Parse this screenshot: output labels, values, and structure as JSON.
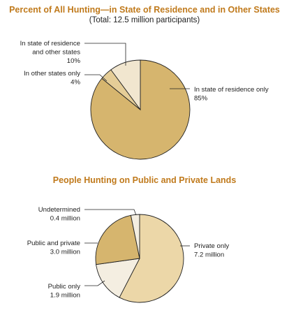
{
  "colors": {
    "title": "#c07a1c",
    "pie_dark": "#d6b56e",
    "pie_light": "#f1e6cf",
    "pie_mid": "#e5cd97",
    "outline": "#222222"
  },
  "chart_data": [
    {
      "type": "pie",
      "title": "Percent of All Hunting—in State of Residence and in Other States",
      "subtitle": "(Total:  12.5 million participants)",
      "slices": [
        {
          "label_lines": [
            "In state of residence only",
            "85%"
          ],
          "value": 85,
          "color": "#d6b56e"
        },
        {
          "label_lines": [
            "In other states only",
            "4%"
          ],
          "value": 4,
          "color": "#e5cd97"
        },
        {
          "label_lines": [
            "In state of residence",
            "and other states",
            "10%"
          ],
          "value": 10,
          "color": "#f1e6cf"
        }
      ]
    },
    {
      "type": "pie",
      "title": "People Hunting on Public and Private Lands",
      "slices": [
        {
          "label_lines": [
            "Private only",
            "7.2 million"
          ],
          "value": 7.2,
          "color": "#ecd7a8"
        },
        {
          "label_lines": [
            "Public only",
            "1.9 million"
          ],
          "value": 1.9,
          "color": "#f4eee1"
        },
        {
          "label_lines": [
            "Public and private",
            "3.0 million"
          ],
          "value": 3.0,
          "color": "#d6b56e"
        },
        {
          "label_lines": [
            "Undetermined",
            "0.4 million"
          ],
          "value": 0.4,
          "color": "#f4eee1"
        }
      ]
    }
  ]
}
